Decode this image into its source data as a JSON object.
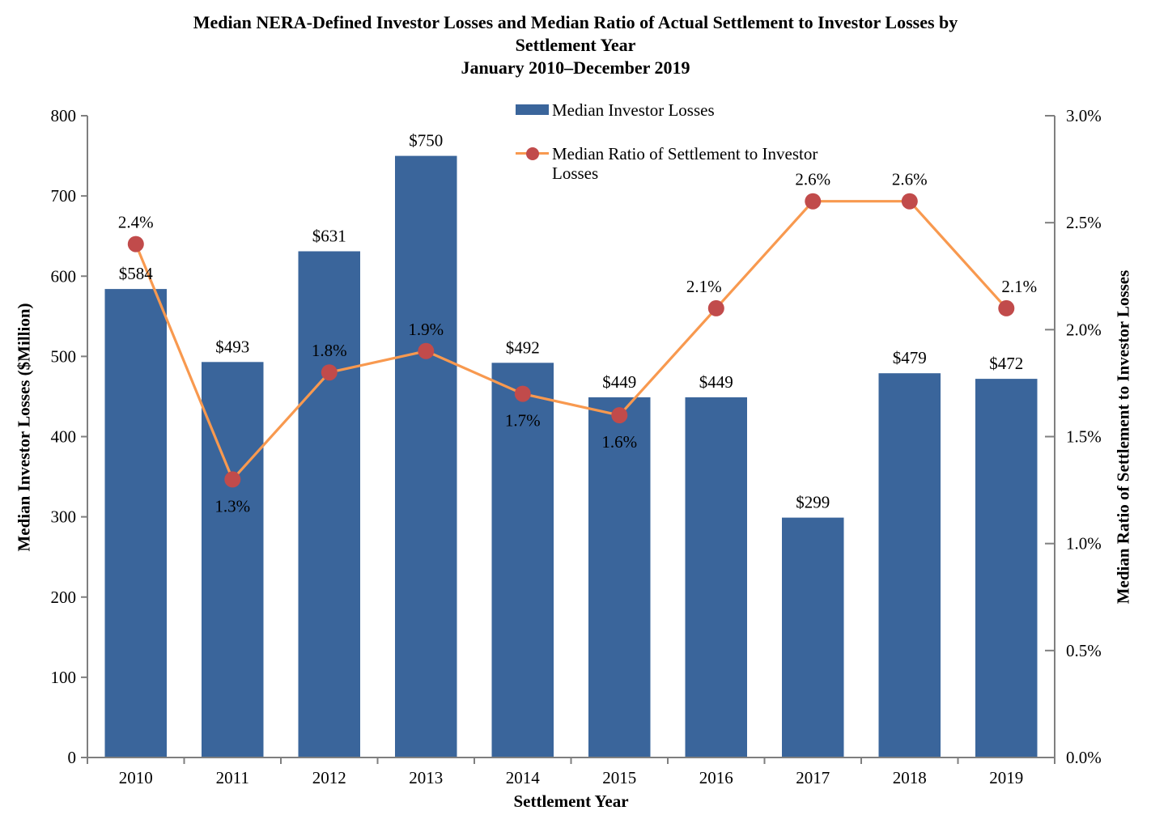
{
  "title": {
    "line1": "Median NERA-Defined Investor Losses and Median Ratio of Actual Settlement to Investor Losses by",
    "line2": "Settlement Year",
    "line3": "January 2010–December 2019"
  },
  "legend": {
    "position": "top-center",
    "items": [
      {
        "label": "Median Investor Losses",
        "swatch": "bar-swatch"
      },
      {
        "label": "Median Ratio of Settlement to Investor Losses",
        "swatch": "line-marker-swatch"
      }
    ]
  },
  "colors": {
    "bar": "#3A659B",
    "line": "#F8994F",
    "marker": "#C14B4B",
    "axis": "#7F7F7F",
    "text": "#000000",
    "label_on_bar": "#FFFFFF"
  },
  "chart_data": {
    "type": "combo-bar-line",
    "title": "Median NERA-Defined Investor Losses and Median Ratio of Actual Settlement to Investor Losses by Settlement Year",
    "subtitle": "January 2010–December 2019",
    "xlabel": "Settlement Year",
    "grid": false,
    "legend_position": "top-center",
    "categories": [
      "2010",
      "2011",
      "2012",
      "2013",
      "2014",
      "2015",
      "2016",
      "2017",
      "2018",
      "2019"
    ],
    "left_axis": {
      "label": "Median Investor Losses ($Million)",
      "min": 0,
      "max": 800,
      "tick_step": 100,
      "ticks": [
        "0",
        "100",
        "200",
        "300",
        "400",
        "500",
        "600",
        "700",
        "800"
      ]
    },
    "right_axis": {
      "label": "Median Ratio of Settlement to Investor Losses",
      "min": 0,
      "max": 3.0,
      "tick_step": 0.5,
      "ticks": [
        "0.0%",
        "0.5%",
        "1.0%",
        "1.5%",
        "2.0%",
        "2.5%",
        "3.0%"
      ]
    },
    "series": [
      {
        "name": "Median Investor Losses",
        "type": "bar",
        "yaxis": "left",
        "values": [
          584,
          493,
          631,
          750,
          492,
          449,
          449,
          299,
          479,
          472
        ],
        "data_labels": [
          "$584",
          "$493",
          "$631",
          "$750",
          "$492",
          "$449",
          "$449",
          "$299",
          "$479",
          "$472"
        ]
      },
      {
        "name": "Median Ratio of Settlement to Investor Losses",
        "type": "line",
        "yaxis": "right",
        "values": [
          2.4,
          1.3,
          1.8,
          1.9,
          1.7,
          1.6,
          2.1,
          2.6,
          2.6,
          2.1
        ],
        "data_labels": [
          "2.4%",
          "1.3%",
          "1.8%",
          "1.9%",
          "1.7%",
          "1.6%",
          "2.1%",
          "2.6%",
          "2.6%",
          "2.1%"
        ],
        "label_placement": [
          "above",
          "below",
          "above",
          "above",
          "below",
          "below",
          "above",
          "above",
          "above",
          "above"
        ],
        "label_dx": [
          0,
          0,
          0,
          0,
          0,
          0,
          -15,
          0,
          0,
          16
        ],
        "label_colors": [
          "#000000",
          "#FFFFFF",
          "#FFFFFF",
          "#FFFFFF",
          "#FFFFFF",
          "#FFFFFF",
          "#000000",
          "#000000",
          "#000000",
          "#000000"
        ]
      }
    ]
  }
}
